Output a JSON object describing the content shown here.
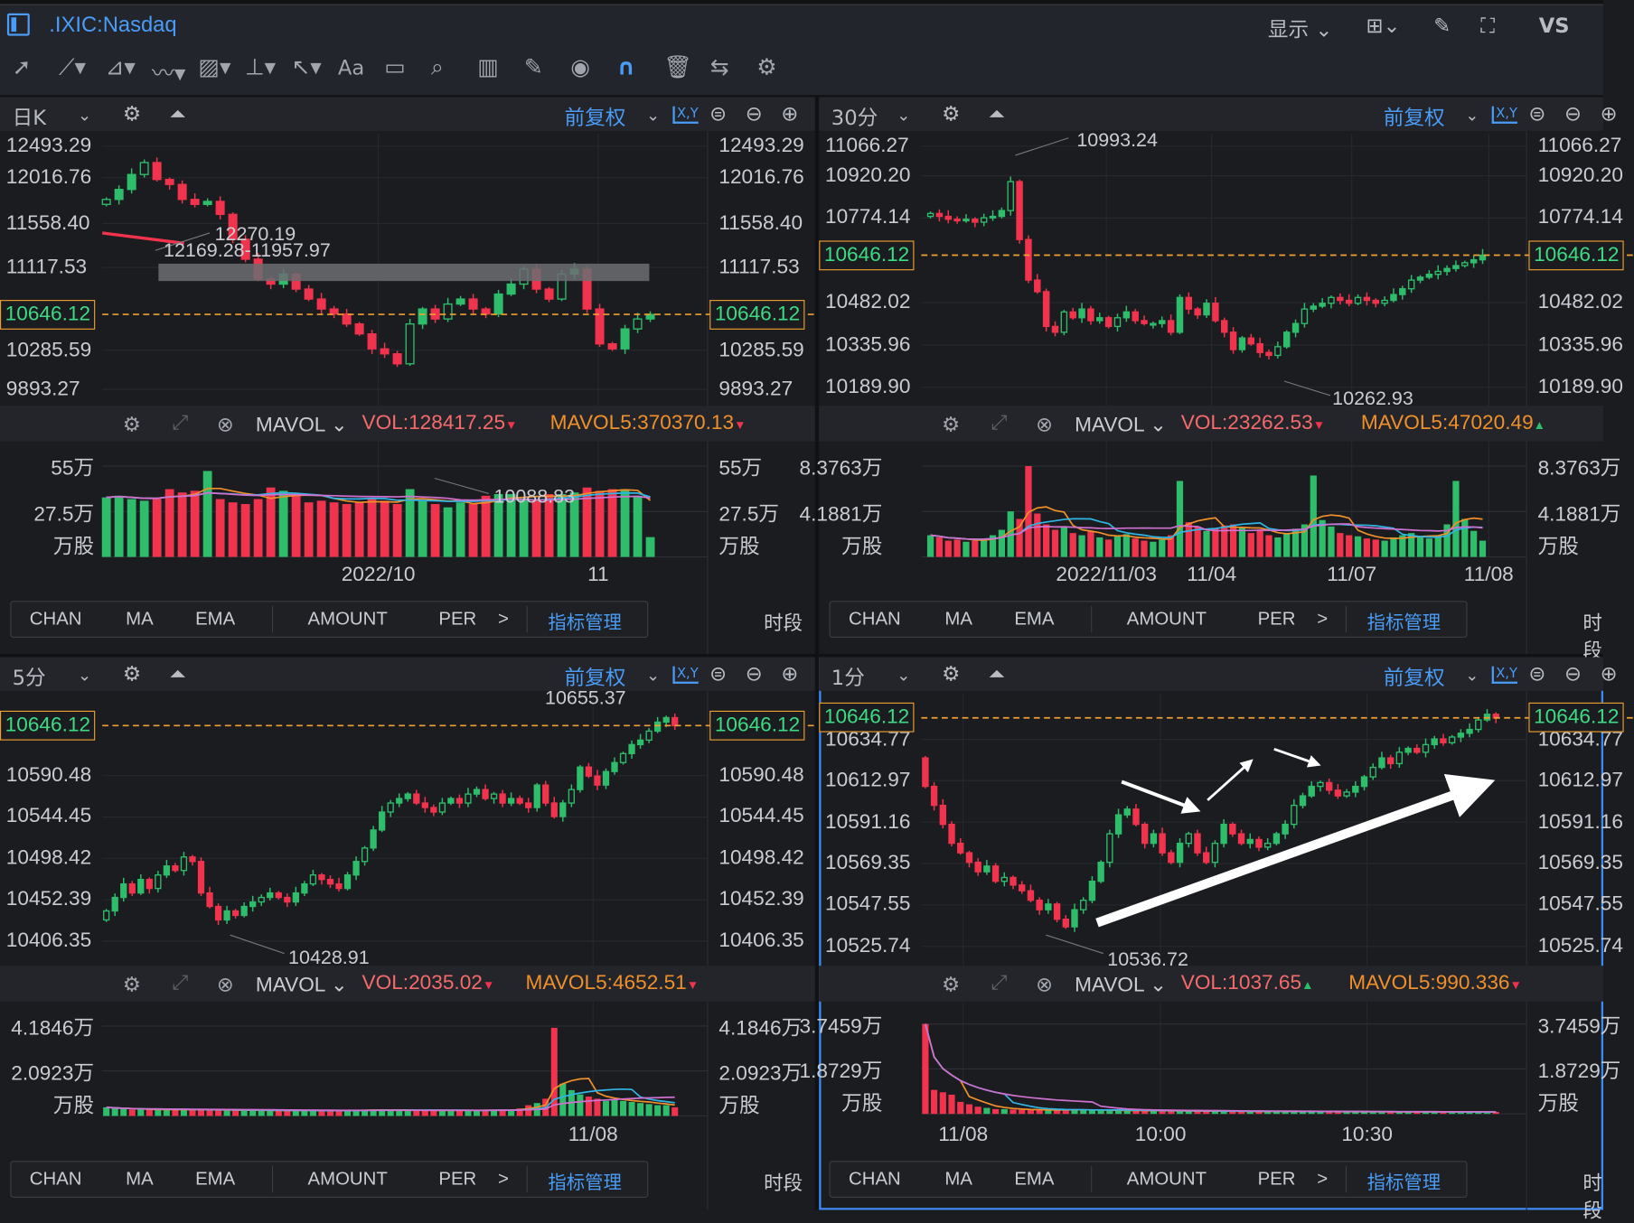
{
  "app": {
    "title": ".IXIC:Nasdaq",
    "display_label": "显示",
    "vs_label": "VS"
  },
  "toolbar": {
    "icons": [
      "cursor-icon",
      "line-icon",
      "polyline-icon",
      "wave-icon",
      "fib-icon",
      "vertical-range-icon",
      "arrow-icon",
      "text-icon",
      "comment-icon",
      "zoom-icon",
      "measure-icon",
      "pen-icon",
      "eye-icon",
      "magnet-icon",
      "trash-icon",
      "sync-icon",
      "settings-icon"
    ],
    "text_tool": "Aa"
  },
  "colors": {
    "up": "#2ebd6b",
    "down": "#f2334d",
    "accent": "#4a9cf6",
    "current_price": "#f0a030",
    "ma5": "#f0902a",
    "ma10": "#2fb6e6",
    "ma20": "#d070d0"
  },
  "indicator_bar": {
    "items": [
      "CHAN",
      "MA",
      "EMA",
      "AMOUNT",
      "PER"
    ],
    "more": ">",
    "manage": "指标管理",
    "period": "时段"
  },
  "panels": [
    {
      "timeframe": "日K",
      "adjust": "前复权",
      "current": "10646.12",
      "price_labels": [
        "12493.29",
        "12016.76",
        "11558.40",
        "11117.53",
        "10285.59",
        "9893.27"
      ],
      "annotations": {
        "high": "12270.19",
        "range": "12169.28-11957.97",
        "low": "10088.83"
      },
      "vol": {
        "indicator": "MAVOL",
        "vol": "VOL:128417.25",
        "vol_dir": "▼",
        "mavol5": "MAVOL5:370370.13",
        "mavol5_dir": "▼",
        "axis": [
          "55万",
          "27.5万",
          "万股"
        ]
      },
      "x_labels": [
        "2022/10",
        "11"
      ],
      "open": 11750,
      "closes": [
        11800,
        11900,
        12050,
        12170,
        12000,
        11950,
        11800,
        11750,
        11780,
        11650,
        11400,
        11200,
        11000,
        10950,
        11050,
        10900,
        10800,
        10700,
        10650,
        10550,
        10450,
        10300,
        10250,
        10150,
        10550,
        10700,
        10600,
        10750,
        10800,
        10700,
        10650,
        10850,
        10950,
        11100,
        10900,
        10800,
        11050,
        11100,
        10700,
        10350,
        10300,
        10500,
        10600,
        10646
      ],
      "volumes": [
        36,
        37,
        35,
        34,
        35,
        41,
        39,
        40,
        52,
        35,
        33,
        32,
        35,
        42,
        40,
        37,
        33,
        34,
        33,
        32,
        33,
        35,
        34,
        32,
        41,
        34,
        32,
        30,
        33,
        32,
        37,
        38,
        38,
        35,
        35,
        38,
        38,
        39,
        42,
        40,
        41,
        41,
        37,
        12
      ]
    },
    {
      "timeframe": "30分",
      "adjust": "前复权",
      "current": "10646.12",
      "price_labels": [
        "11066.27",
        "10920.20",
        "10774.14",
        "10482.02",
        "10335.96",
        "10189.90"
      ],
      "annotations": {
        "high": "10993.24",
        "low": "10262.93"
      },
      "vol": {
        "indicator": "MAVOL",
        "vol": "VOL:23262.53",
        "vol_dir": "▼",
        "mavol5": "MAVOL5:47020.49",
        "mavol5_dir": "▲",
        "axis": [
          "8.3763万",
          "4.1881万",
          "万股"
        ]
      },
      "x_labels": [
        "2022/11/03",
        "11/04",
        "11/07",
        "11/08"
      ],
      "open": 10780,
      "closes": [
        10790,
        10780,
        10770,
        10765,
        10770,
        10760,
        10775,
        10780,
        10800,
        10900,
        10700,
        10560,
        10520,
        10400,
        10380,
        10450,
        10430,
        10460,
        10420,
        10430,
        10400,
        10430,
        10450,
        10420,
        10410,
        10410,
        10420,
        10380,
        10500,
        10460,
        10440,
        10480,
        10420,
        10380,
        10320,
        10360,
        10340,
        10310,
        10300,
        10330,
        10380,
        10410,
        10460,
        10470,
        10480,
        10500,
        10490,
        10480,
        10500,
        10490,
        10480,
        10490,
        10510,
        10530,
        10560,
        10570,
        10580,
        10590,
        10600,
        10610,
        10620,
        10630,
        10646
      ],
      "volumes": [
        2.0,
        1.8,
        1.5,
        1.6,
        1.4,
        1.5,
        1.7,
        2.0,
        2.5,
        4.2,
        3.5,
        8.37,
        4.0,
        3.0,
        2.5,
        2.8,
        2.2,
        2.0,
        2.4,
        1.8,
        1.6,
        1.9,
        2.1,
        1.7,
        1.5,
        1.4,
        1.6,
        2.0,
        7.0,
        3.2,
        2.8,
        2.4,
        2.6,
        2.9,
        3.0,
        2.7,
        2.2,
        2.5,
        2.0,
        1.8,
        2.2,
        2.6,
        3.0,
        7.5,
        3.4,
        2.8,
        2.2,
        2.0,
        1.9,
        1.7,
        1.6,
        1.5,
        1.8,
        2.0,
        2.2,
        1.9,
        1.7,
        2.0,
        3.0,
        7.0,
        3.5,
        2.4,
        1.5
      ]
    },
    {
      "timeframe": "5分",
      "adjust": "前复权",
      "current": "10646.12",
      "price_labels": [
        "10590.48",
        "10544.45",
        "10498.42",
        "10452.39",
        "10406.35"
      ],
      "annotations": {
        "high": "10655.37",
        "low": "10428.91"
      },
      "vol": {
        "indicator": "MAVOL",
        "vol": "VOL:2035.02",
        "vol_dir": "▼",
        "mavol5": "MAVOL5:4652.51",
        "mavol5_dir": "▼",
        "axis": [
          "4.1846万",
          "2.0923万",
          "万股"
        ]
      },
      "x_labels": [
        "11/08"
      ],
      "open": 10430,
      "closes": [
        10440,
        10455,
        10470,
        10460,
        10475,
        10465,
        10480,
        10490,
        10485,
        10500,
        10495,
        10460,
        10445,
        10430,
        10440,
        10435,
        10445,
        10450,
        10455,
        10460,
        10455,
        10450,
        10460,
        10470,
        10480,
        10475,
        10470,
        10465,
        10480,
        10495,
        10510,
        10530,
        10550,
        10560,
        10565,
        10570,
        10560,
        10555,
        10550,
        10560,
        10565,
        10560,
        10570,
        10575,
        10565,
        10570,
        10560,
        10565,
        10560,
        10555,
        10580,
        10560,
        10545,
        10560,
        10575,
        10600,
        10590,
        10580,
        10595,
        10605,
        10615,
        10625,
        10630,
        10640,
        10650,
        10655,
        10646
      ],
      "volumes": [
        0.4,
        0.35,
        0.32,
        0.3,
        0.3,
        0.28,
        0.3,
        0.3,
        0.28,
        0.3,
        0.28,
        0.3,
        0.27,
        0.26,
        0.28,
        0.25,
        0.26,
        0.27,
        0.25,
        0.26,
        0.25,
        0.24,
        0.25,
        0.26,
        0.25,
        0.24,
        0.25,
        0.24,
        0.26,
        0.27,
        0.28,
        0.3,
        0.29,
        0.27,
        0.26,
        0.25,
        0.26,
        0.27,
        0.26,
        0.25,
        0.26,
        0.27,
        0.26,
        0.25,
        0.26,
        0.27,
        0.28,
        0.3,
        0.35,
        0.5,
        0.6,
        0.8,
        4.1,
        1.5,
        1.2,
        1.0,
        0.9,
        0.8,
        0.7,
        0.75,
        0.7,
        0.65,
        0.6,
        0.55,
        0.5,
        0.5,
        0.4
      ]
    },
    {
      "timeframe": "1分",
      "adjust": "前复权",
      "current": "10646.12",
      "price_labels": [
        "10634.77",
        "10612.97",
        "10591.16",
        "10569.35",
        "10547.55",
        "10525.74"
      ],
      "annotations": {
        "low": "10536.72"
      },
      "vol": {
        "indicator": "MAVOL",
        "vol": "VOL:1037.65",
        "vol_dir": "▲",
        "mavol5": "MAVOL5:990.336",
        "mavol5_dir": "▼",
        "axis": [
          "3.7459万",
          "1.8729万",
          "万股"
        ]
      },
      "x_labels": [
        "11/08",
        "10:00",
        "10:30"
      ],
      "open": 10625,
      "closes": [
        10610,
        10600,
        10590,
        10580,
        10575,
        10570,
        10565,
        10568,
        10560,
        10562,
        10558,
        10555,
        10550,
        10545,
        10548,
        10540,
        10536,
        10545,
        10550,
        10560,
        10570,
        10585,
        10595,
        10598,
        10590,
        10580,
        10585,
        10575,
        10570,
        10580,
        10585,
        10575,
        10570,
        10580,
        10590,
        10585,
        10580,
        10582,
        10578,
        10580,
        10585,
        10590,
        10600,
        10605,
        10610,
        10612,
        10608,
        10605,
        10607,
        10610,
        10615,
        10620,
        10625,
        10622,
        10628,
        10630,
        10628,
        10632,
        10635,
        10633,
        10636,
        10638,
        10640,
        10645,
        10648,
        10646
      ],
      "volumes": [
        3.7459,
        1.0,
        0.9,
        0.8,
        0.5,
        0.4,
        0.3,
        0.25,
        0.2,
        0.2,
        0.18,
        0.17,
        0.16,
        0.17,
        0.16,
        0.15,
        0.2,
        0.18,
        0.16,
        0.15,
        0.14,
        0.15,
        0.14,
        0.13,
        0.14,
        0.13,
        0.12,
        0.13,
        0.12,
        0.12,
        0.11,
        0.12,
        0.11,
        0.12,
        0.11,
        0.1,
        0.11,
        0.1,
        0.1,
        0.11,
        0.1,
        0.1,
        0.1,
        0.09,
        0.1,
        0.09,
        0.1,
        0.09,
        0.09,
        0.1,
        0.09,
        0.09,
        0.08,
        0.09,
        0.08,
        0.09,
        0.08,
        0.08,
        0.09,
        0.08,
        0.08,
        0.08,
        0.08,
        0.09,
        0.08,
        0.08
      ]
    }
  ]
}
